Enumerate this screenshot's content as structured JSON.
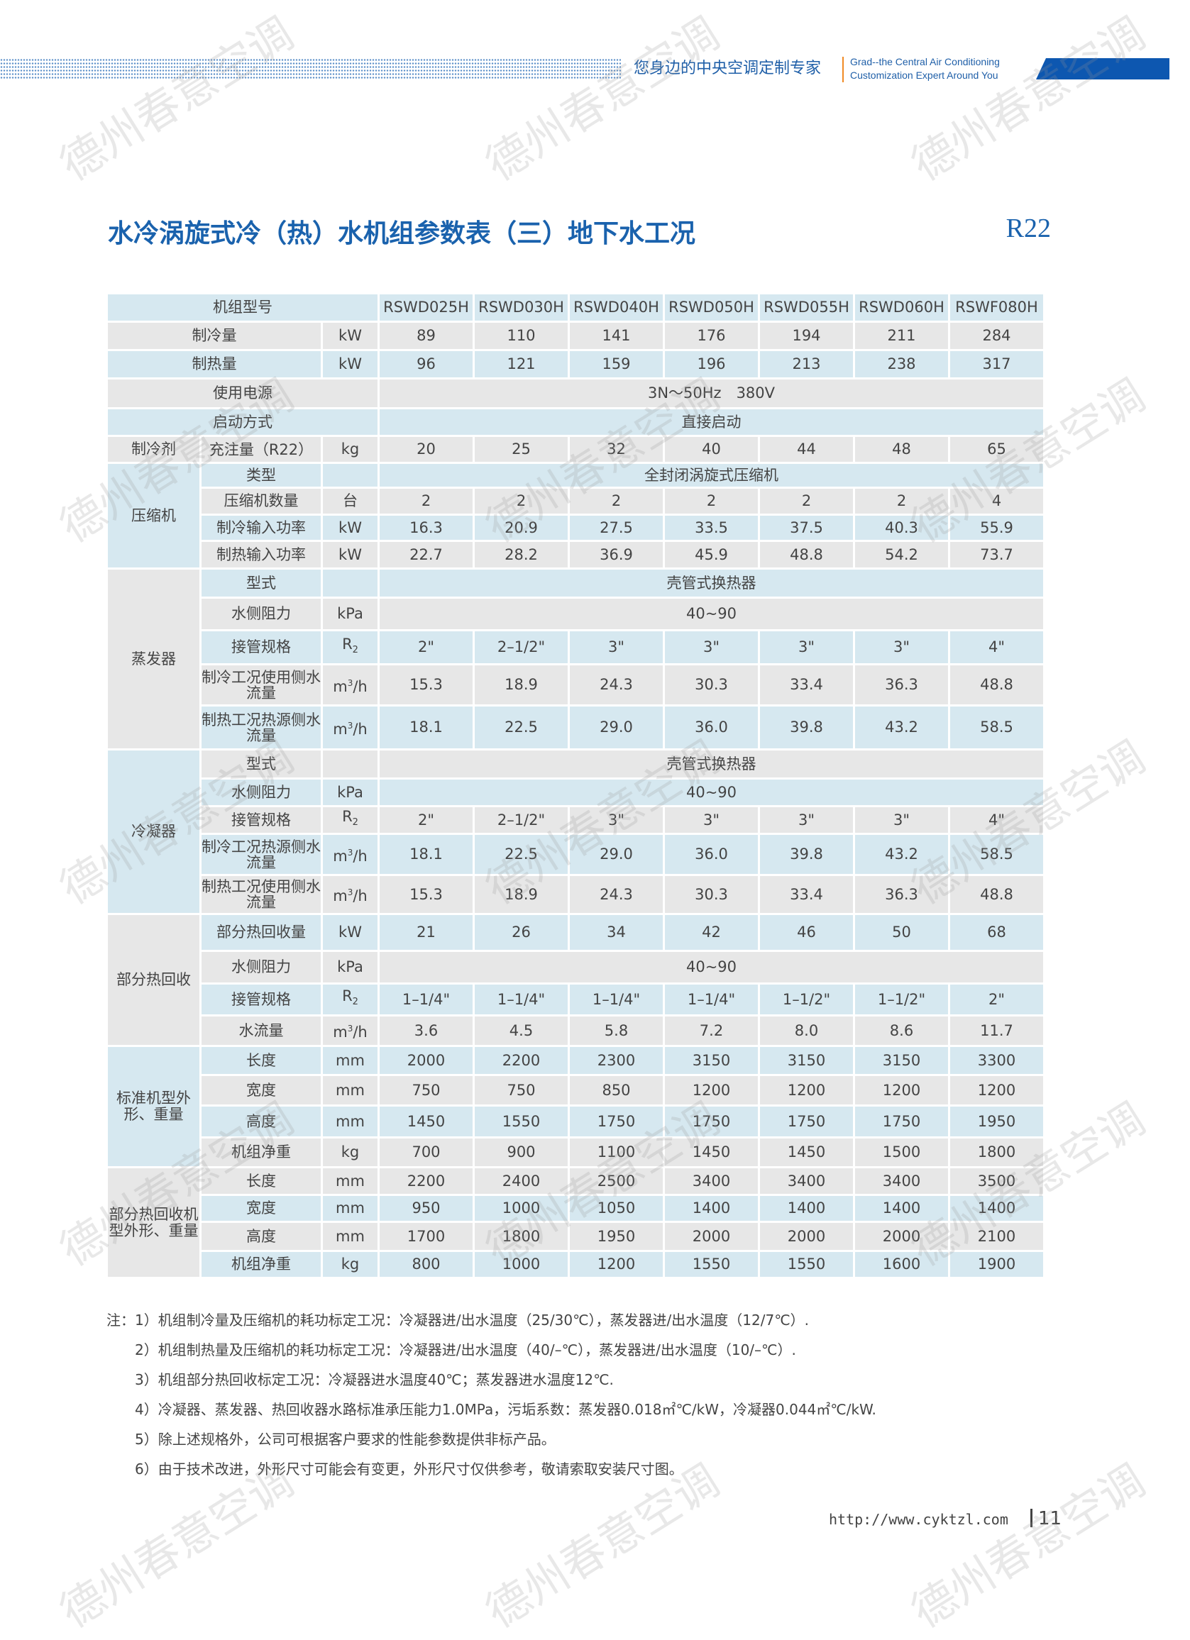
{
  "header": {
    "slogan": "您身边的中央空调定制专家",
    "english_line1": "Grad--the Central Air Conditioning",
    "english_line2": "Customization Expert Around You"
  },
  "title": "水冷涡旋式冷（热）水机组参数表（三）地下水工况",
  "refrigerant_tag": "R22",
  "colors": {
    "accent": "#1a62ad",
    "row_blue": "#d6e8f0",
    "row_gray": "#e7e7e7",
    "divider": "#f08a24"
  },
  "table": {
    "header_label": "机组型号",
    "models": [
      "RSWD025H",
      "RSWD030H",
      "RSWD040H",
      "RSWD050H",
      "RSWD055H",
      "RSWD060H",
      "RSWF080H"
    ],
    "rows": [
      {
        "label": "制冷量",
        "unit": "kW",
        "values": [
          "89",
          "110",
          "141",
          "176",
          "194",
          "211",
          "284"
        ]
      },
      {
        "label": "制热量",
        "unit": "kW",
        "values": [
          "96",
          "121",
          "159",
          "196",
          "213",
          "238",
          "317"
        ]
      },
      {
        "label": "使用电源",
        "span": "3N～50Hz　380V"
      },
      {
        "label": "启动方式",
        "span": "直接启动"
      },
      {
        "group": "制冷剂",
        "label": "充注量（R22）",
        "unit": "kg",
        "values": [
          "20",
          "25",
          "32",
          "40",
          "44",
          "48",
          "65"
        ]
      },
      {
        "group": "压缩机",
        "label": "类型",
        "unit": "",
        "span": "全封闭涡旋式压缩机"
      },
      {
        "label": "压缩机数量",
        "unit": "台",
        "values": [
          "2",
          "2",
          "2",
          "2",
          "2",
          "2",
          "4"
        ]
      },
      {
        "label": "制冷输入功率",
        "unit": "kW",
        "values": [
          "16.3",
          "20.9",
          "27.5",
          "33.5",
          "37.5",
          "40.3",
          "55.9"
        ]
      },
      {
        "label": "制热输入功率",
        "unit": "kW",
        "values": [
          "22.7",
          "28.2",
          "36.9",
          "45.9",
          "48.8",
          "54.2",
          "73.7"
        ]
      },
      {
        "group": "蒸发器",
        "label": "型式",
        "unit": "",
        "span": "壳管式换热器"
      },
      {
        "label": "水侧阻力",
        "unit": "kPa",
        "span": "40~90"
      },
      {
        "label": "接管规格",
        "unit": "R2",
        "values": [
          "2\"",
          "2–1/2\"",
          "3\"",
          "3\"",
          "3\"",
          "3\"",
          "4\""
        ]
      },
      {
        "label": "制冷工况使用侧水流量",
        "unit": "m3/h",
        "values": [
          "15.3",
          "18.9",
          "24.3",
          "30.3",
          "33.4",
          "36.3",
          "48.8"
        ]
      },
      {
        "label": "制热工况热源侧水流量",
        "unit": "m3/h",
        "values": [
          "18.1",
          "22.5",
          "29.0",
          "36.0",
          "39.8",
          "43.2",
          "58.5"
        ]
      },
      {
        "group": "冷凝器",
        "label": "型式",
        "unit": "",
        "span": "壳管式换热器"
      },
      {
        "label": "水侧阻力",
        "unit": "kPa",
        "span": "40~90"
      },
      {
        "label": "接管规格",
        "unit": "R2",
        "values": [
          "2\"",
          "2–1/2\"",
          "3\"",
          "3\"",
          "3\"",
          "3\"",
          "4\""
        ]
      },
      {
        "label": "制冷工况热源侧水流量",
        "unit": "m3/h",
        "values": [
          "18.1",
          "22.5",
          "29.0",
          "36.0",
          "39.8",
          "43.2",
          "58.5"
        ]
      },
      {
        "label": "制热工况使用侧水流量",
        "unit": "m3/h",
        "values": [
          "15.3",
          "18.9",
          "24.3",
          "30.3",
          "33.4",
          "36.3",
          "48.8"
        ]
      },
      {
        "group": "部分热回收",
        "label": "部分热回收量",
        "unit": "kW",
        "values": [
          "21",
          "26",
          "34",
          "42",
          "46",
          "50",
          "68"
        ]
      },
      {
        "label": "水侧阻力",
        "unit": "kPa",
        "span": "40~90"
      },
      {
        "label": "接管规格",
        "unit": "R2",
        "values": [
          "1–1/4\"",
          "1–1/4\"",
          "1–1/4\"",
          "1–1/4\"",
          "1–1/2\"",
          "1–1/2\"",
          "2\""
        ]
      },
      {
        "label": "水流量",
        "unit": "m3/h",
        "values": [
          "3.6",
          "4.5",
          "5.8",
          "7.2",
          "8.0",
          "8.6",
          "11.7"
        ]
      },
      {
        "group": "标准机型外形、重量",
        "label": "长度",
        "unit": "mm",
        "values": [
          "2000",
          "2200",
          "2300",
          "3150",
          "3150",
          "3150",
          "3300"
        ]
      },
      {
        "label": "宽度",
        "unit": "mm",
        "values": [
          "750",
          "750",
          "850",
          "1200",
          "1200",
          "1200",
          "1200"
        ]
      },
      {
        "label": "高度",
        "unit": "mm",
        "values": [
          "1450",
          "1550",
          "1750",
          "1750",
          "1750",
          "1750",
          "1950"
        ]
      },
      {
        "label": "机组净重",
        "unit": "kg",
        "values": [
          "700",
          "900",
          "1100",
          "1450",
          "1450",
          "1500",
          "1800"
        ]
      },
      {
        "group": "部分热回收机型外形、重量",
        "label": "长度",
        "unit": "mm",
        "values": [
          "2200",
          "2400",
          "2500",
          "3400",
          "3400",
          "3400",
          "3500"
        ]
      },
      {
        "label": "宽度",
        "unit": "mm",
        "values": [
          "950",
          "1000",
          "1050",
          "1400",
          "1400",
          "1400",
          "1400"
        ]
      },
      {
        "label": "高度",
        "unit": "mm",
        "values": [
          "1700",
          "1800",
          "1950",
          "2000",
          "2000",
          "2000",
          "2100"
        ]
      },
      {
        "label": "机组净重",
        "unit": "kg",
        "values": [
          "800",
          "1000",
          "1200",
          "1550",
          "1550",
          "1600",
          "1900"
        ]
      }
    ]
  },
  "notes": [
    "注：1）机组制冷量及压缩机的耗功标定工况：冷凝器进/出水温度（25/30℃），蒸发器进/出水温度（12/7℃）.",
    "2）机组制热量及压缩机的耗功标定工况：冷凝器进/出水温度（40/–℃），蒸发器进/出水温度（10/–℃）.",
    "3）机组部分热回收标定工况：冷凝器进水温度40℃；蒸发器进水温度12℃.",
    "4）冷凝器、蒸发器、热回收器水路标准承压能力1.0MPa，污垢系数：蒸发器0.018㎡℃/kW，冷凝器0.044㎡℃/kW.",
    "5）除上述规格外，公司可根据客户要求的性能参数提供非标产品。",
    "6）由于技术改进，外形尺寸可能会有变更，外形尺寸仅供参考，敬请索取安装尺寸图。"
  ],
  "footer": {
    "url": "http://www.cyktzl.com",
    "page_number": "11"
  },
  "watermark": "德州春意空调"
}
